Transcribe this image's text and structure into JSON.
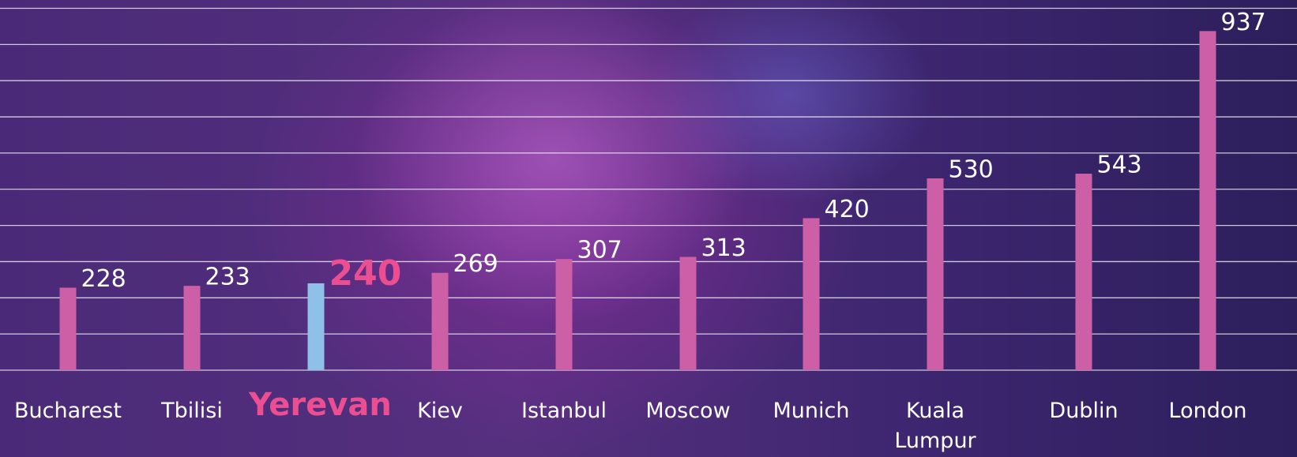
{
  "chart_data": {
    "type": "bar",
    "categories": [
      "Bucharest",
      "Tbilisi",
      "Yerevan",
      "Kiev",
      "Istanbul",
      "Moscow",
      "Munich",
      "Kuala Lumpur",
      "Dublin",
      "London"
    ],
    "values": [
      228,
      233,
      240,
      269,
      307,
      313,
      420,
      530,
      543,
      937
    ],
    "colors": [
      "#cc5fa6",
      "#cc5fa6",
      "#8fc0e8",
      "#cc5fa6",
      "#cc5fa6",
      "#cc5fa6",
      "#cc5fa6",
      "#cc5fa6",
      "#cc5fa6",
      "#cc5fa6"
    ],
    "highlight_label_color": "#ec4f91",
    "ylim": [
      0,
      1000
    ],
    "yticks": [
      0,
      100,
      200,
      300,
      400,
      500,
      600,
      700,
      800,
      900,
      1000
    ],
    "grid": true
  }
}
